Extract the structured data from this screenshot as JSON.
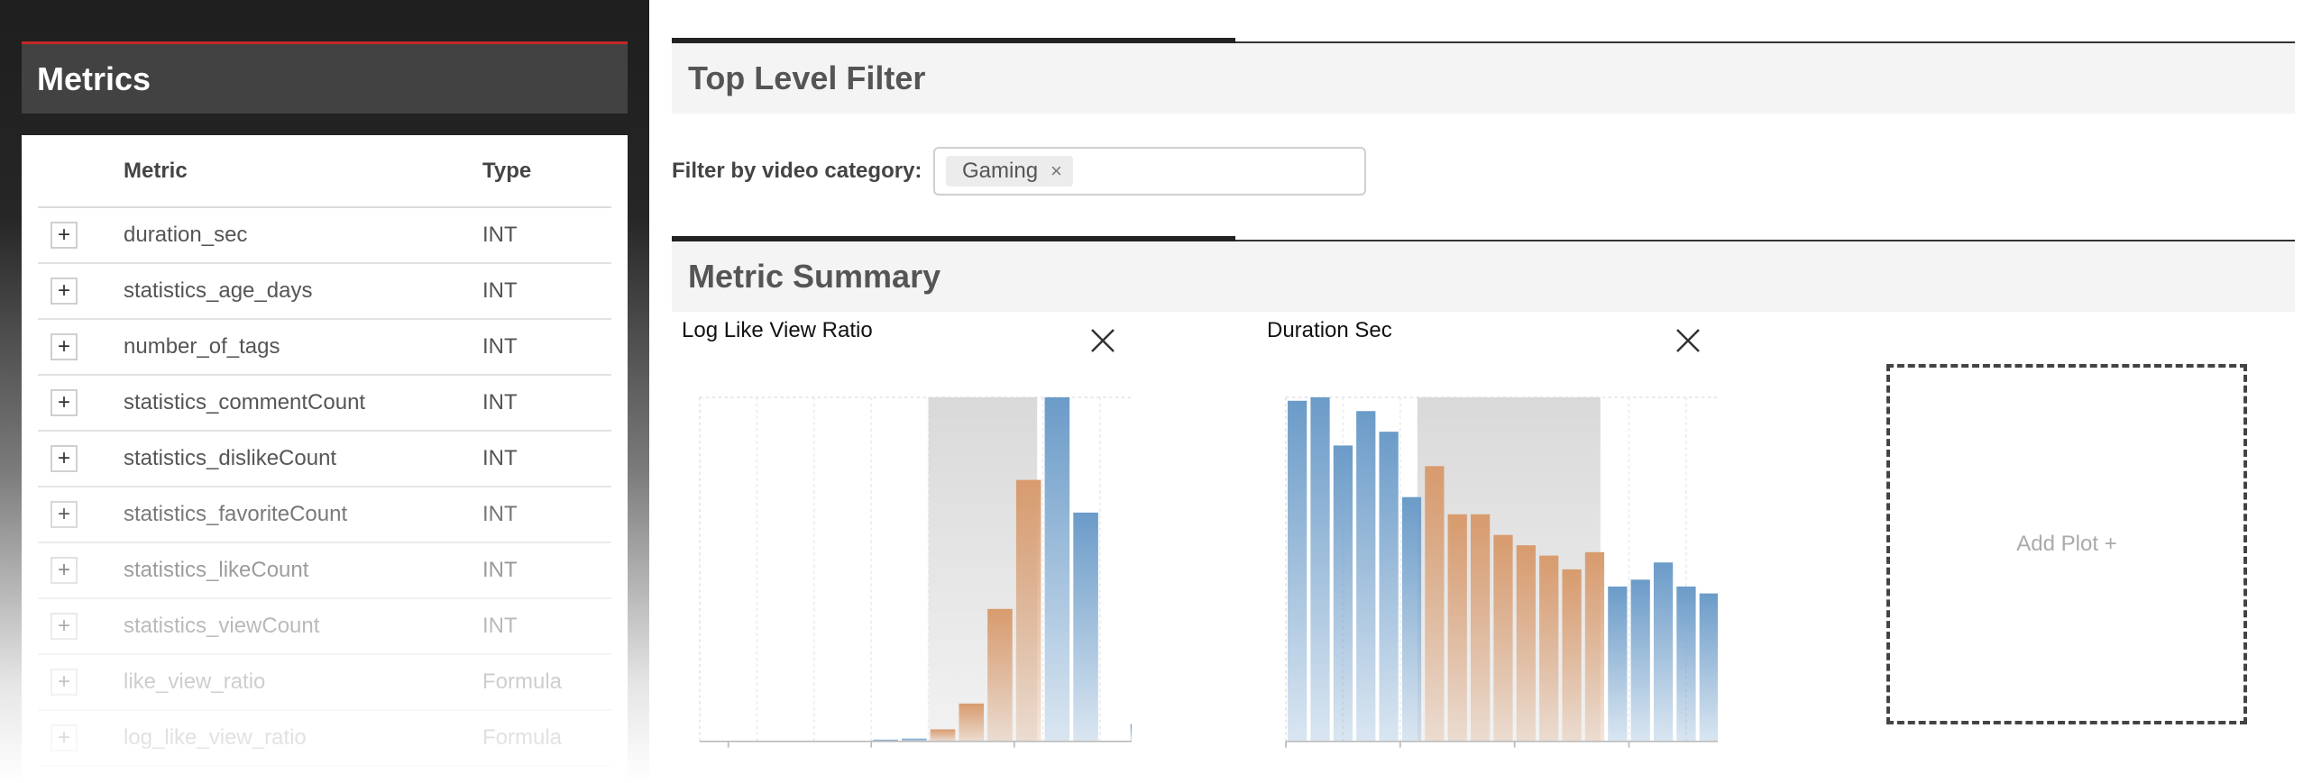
{
  "metrics_panel": {
    "title": "Metrics",
    "columns": {
      "metric": "Metric",
      "type": "Type"
    },
    "rows": [
      {
        "metric": "duration_sec",
        "type": "INT"
      },
      {
        "metric": "statistics_age_days",
        "type": "INT"
      },
      {
        "metric": "number_of_tags",
        "type": "INT"
      },
      {
        "metric": "statistics_commentCount",
        "type": "INT"
      },
      {
        "metric": "statistics_dislikeCount",
        "type": "INT"
      },
      {
        "metric": "statistics_favoriteCount",
        "type": "INT"
      },
      {
        "metric": "statistics_likeCount",
        "type": "INT"
      },
      {
        "metric": "statistics_viewCount",
        "type": "INT"
      },
      {
        "metric": "like_view_ratio",
        "type": "Formula"
      },
      {
        "metric": "log_like_view_ratio",
        "type": "Formula"
      }
    ],
    "add_symbol": "+"
  },
  "top_filter": {
    "title": "Top Level Filter",
    "label": "Filter by video category:",
    "chip": "Gaming",
    "chip_remove": "×"
  },
  "metric_summary": {
    "title": "Metric Summary",
    "add_plot_label": "Add Plot +"
  },
  "colors": {
    "selected_bar": "#d89b6e",
    "unselected_bar": "#6b9bc8",
    "selection_band": "#d9d9d9"
  },
  "chart_data": [
    {
      "type": "bar",
      "title": "Log Like View Ratio",
      "xlim": [
        -16,
        0
      ],
      "ylim": [
        0,
        100
      ],
      "x_ticks": [
        "-15",
        "-10",
        "-5",
        "0"
      ],
      "x_tick_values": [
        -15,
        -10,
        -5,
        0
      ],
      "selection": [
        -8,
        -4.2
      ],
      "bins": [
        {
          "x0": -16,
          "x1": -15,
          "value": 0
        },
        {
          "x0": -15,
          "x1": -14,
          "value": 0
        },
        {
          "x0": -14,
          "x1": -13,
          "value": 0
        },
        {
          "x0": -13,
          "x1": -12,
          "value": 0
        },
        {
          "x0": -12,
          "x1": -11,
          "value": 0
        },
        {
          "x0": -11,
          "x1": -10,
          "value": 0
        },
        {
          "x0": -10,
          "x1": -9,
          "value": 0.5
        },
        {
          "x0": -9,
          "x1": -8,
          "value": 0.8
        },
        {
          "x0": -8,
          "x1": -7,
          "value": 3.5
        },
        {
          "x0": -7,
          "x1": -6,
          "value": 11
        },
        {
          "x0": -6,
          "x1": -5,
          "value": 38.5
        },
        {
          "x0": -5,
          "x1": -4,
          "value": 76
        },
        {
          "x0": -4,
          "x1": -3,
          "value": 100
        },
        {
          "x0": -3,
          "x1": -2,
          "value": 66.5
        },
        {
          "x0": -2,
          "x1": -1,
          "value": 0
        },
        {
          "x0": -1,
          "x1": 0,
          "value": 5
        }
      ]
    },
    {
      "type": "bar",
      "title": "Duration Sec",
      "xlim": [
        100,
        500
      ],
      "ylim": [
        0,
        100
      ],
      "x_ticks": [
        "100",
        "200",
        "300",
        "400",
        "500"
      ],
      "x_tick_values": [
        100,
        200,
        300,
        400,
        500
      ],
      "selection": [
        215,
        375
      ],
      "bins": [
        {
          "x0": 100,
          "x1": 120,
          "value": 99
        },
        {
          "x0": 120,
          "x1": 140,
          "value": 100
        },
        {
          "x0": 140,
          "x1": 160,
          "value": 86
        },
        {
          "x0": 160,
          "x1": 180,
          "value": 96
        },
        {
          "x0": 180,
          "x1": 200,
          "value": 90
        },
        {
          "x0": 200,
          "x1": 220,
          "value": 71
        },
        {
          "x0": 220,
          "x1": 240,
          "value": 80
        },
        {
          "x0": 240,
          "x1": 260,
          "value": 66
        },
        {
          "x0": 260,
          "x1": 280,
          "value": 66
        },
        {
          "x0": 280,
          "x1": 300,
          "value": 60
        },
        {
          "x0": 300,
          "x1": 320,
          "value": 57
        },
        {
          "x0": 320,
          "x1": 340,
          "value": 54
        },
        {
          "x0": 340,
          "x1": 360,
          "value": 50
        },
        {
          "x0": 360,
          "x1": 380,
          "value": 55
        },
        {
          "x0": 380,
          "x1": 400,
          "value": 45
        },
        {
          "x0": 400,
          "x1": 420,
          "value": 47
        },
        {
          "x0": 420,
          "x1": 440,
          "value": 52
        },
        {
          "x0": 440,
          "x1": 460,
          "value": 45
        },
        {
          "x0": 460,
          "x1": 480,
          "value": 43
        },
        {
          "x0": 480,
          "x1": 500,
          "value": 0
        }
      ]
    }
  ]
}
